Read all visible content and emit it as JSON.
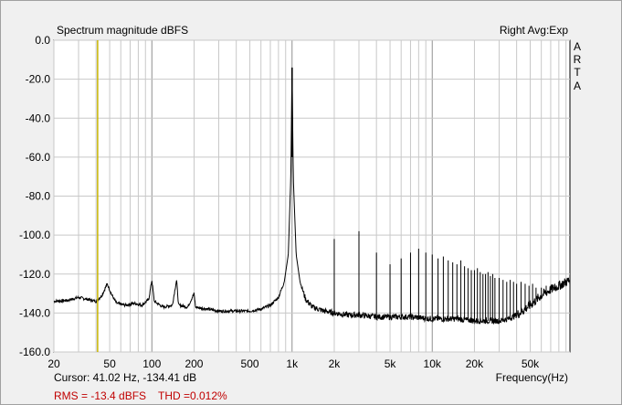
{
  "chart_data": {
    "type": "line",
    "title": "Spectrum magnitude dBFS",
    "status_right": "Right Avg:Exp",
    "brand_letters": [
      "A",
      "R",
      "T",
      "A"
    ],
    "xlabel": "Frequency(Hz)",
    "x_scale": "log",
    "xlim": [
      20,
      96000
    ],
    "ylim": [
      -160,
      0
    ],
    "y_ticks": [
      0,
      -20,
      -40,
      -60,
      -80,
      -100,
      -120,
      -140,
      -160
    ],
    "y_tick_labels": [
      "0.0",
      "-20.0",
      "-40.0",
      "-60.0",
      "-80.0",
      "-100.0",
      "-120.0",
      "-140.0",
      "-160.0"
    ],
    "x_ticks": [
      20,
      50,
      100,
      200,
      500,
      1000,
      2000,
      5000,
      10000,
      20000,
      50000
    ],
    "x_tick_labels": [
      "20",
      "50",
      "100",
      "200",
      "500",
      "1k",
      "2k",
      "5k",
      "10k",
      "20k",
      "50k"
    ],
    "grid": true,
    "cursor_x": 41.02,
    "cursor_text": "Cursor: 41.02 Hz, -134.41 dB",
    "rms_text": "RMS =  -13.4 dBFS",
    "thd_text": "THD =0.012%",
    "series": [
      {
        "color": "#000000",
        "fundamental": {
          "x": 1000,
          "y": -14
        },
        "points": [
          [
            20,
            -134
          ],
          [
            25,
            -133.5
          ],
          [
            30,
            -132
          ],
          [
            35,
            -133
          ],
          [
            40,
            -134
          ],
          [
            44,
            -131
          ],
          [
            48,
            -125
          ],
          [
            52,
            -131
          ],
          [
            56,
            -135
          ],
          [
            65,
            -136
          ],
          [
            75,
            -135
          ],
          [
            85,
            -136
          ],
          [
            95,
            -133
          ],
          [
            100,
            -123
          ],
          [
            104,
            -134
          ],
          [
            120,
            -137
          ],
          [
            140,
            -136
          ],
          [
            150,
            -123
          ],
          [
            155,
            -136
          ],
          [
            180,
            -137
          ],
          [
            200,
            -130
          ],
          [
            205,
            -137
          ],
          [
            250,
            -138
          ],
          [
            300,
            -139
          ],
          [
            400,
            -139
          ],
          [
            500,
            -139
          ],
          [
            600,
            -138
          ],
          [
            700,
            -136
          ],
          [
            800,
            -132
          ],
          [
            880,
            -124
          ],
          [
            940,
            -110
          ],
          [
            980,
            -70
          ],
          [
            1000,
            -14
          ],
          [
            1020,
            -70
          ],
          [
            1070,
            -110
          ],
          [
            1140,
            -124
          ],
          [
            1250,
            -133
          ],
          [
            1400,
            -137
          ],
          [
            1700,
            -139
          ],
          [
            2000,
            -140
          ],
          [
            2500,
            -141
          ],
          [
            3000,
            -141
          ],
          [
            4000,
            -142
          ],
          [
            5000,
            -142
          ],
          [
            7000,
            -142
          ],
          [
            10000,
            -143
          ],
          [
            15000,
            -143
          ],
          [
            20000,
            -144
          ],
          [
            25000,
            -144
          ],
          [
            30000,
            -144
          ],
          [
            35000,
            -143
          ],
          [
            40000,
            -141
          ],
          [
            50000,
            -136
          ],
          [
            60000,
            -131
          ],
          [
            70000,
            -128
          ],
          [
            80000,
            -126
          ],
          [
            96000,
            -123
          ]
        ],
        "harmonics": [
          [
            2000,
            -102
          ],
          [
            3000,
            -98
          ],
          [
            4000,
            -109
          ],
          [
            5000,
            -115
          ],
          [
            6000,
            -112
          ],
          [
            7000,
            -109
          ],
          [
            8000,
            -107
          ],
          [
            9000,
            -109
          ],
          [
            10000,
            -110
          ],
          [
            11000,
            -112
          ],
          [
            12000,
            -111
          ],
          [
            13000,
            -113
          ],
          [
            14000,
            -114
          ],
          [
            15000,
            -115
          ],
          [
            16000,
            -113
          ],
          [
            17000,
            -116
          ],
          [
            18000,
            -117
          ],
          [
            19000,
            -118
          ],
          [
            20000,
            -118
          ],
          [
            21000,
            -117
          ],
          [
            22000,
            -119
          ],
          [
            23000,
            -120
          ],
          [
            24000,
            -120
          ],
          [
            25000,
            -119
          ],
          [
            26000,
            -121
          ],
          [
            27000,
            -120
          ],
          [
            28000,
            -122
          ],
          [
            30000,
            -122
          ],
          [
            32000,
            -123
          ],
          [
            34000,
            -124
          ],
          [
            36000,
            -123
          ],
          [
            38000,
            -124
          ],
          [
            40000,
            -125
          ],
          [
            43000,
            -124
          ],
          [
            46000,
            -125
          ],
          [
            49000,
            -126
          ],
          [
            52000,
            -125
          ],
          [
            55000,
            -127
          ],
          [
            60000,
            -127
          ],
          [
            65000,
            -126
          ],
          [
            70000,
            -126
          ],
          [
            75000,
            -125
          ],
          [
            80000,
            -125
          ],
          [
            85000,
            -124
          ]
        ]
      }
    ]
  }
}
